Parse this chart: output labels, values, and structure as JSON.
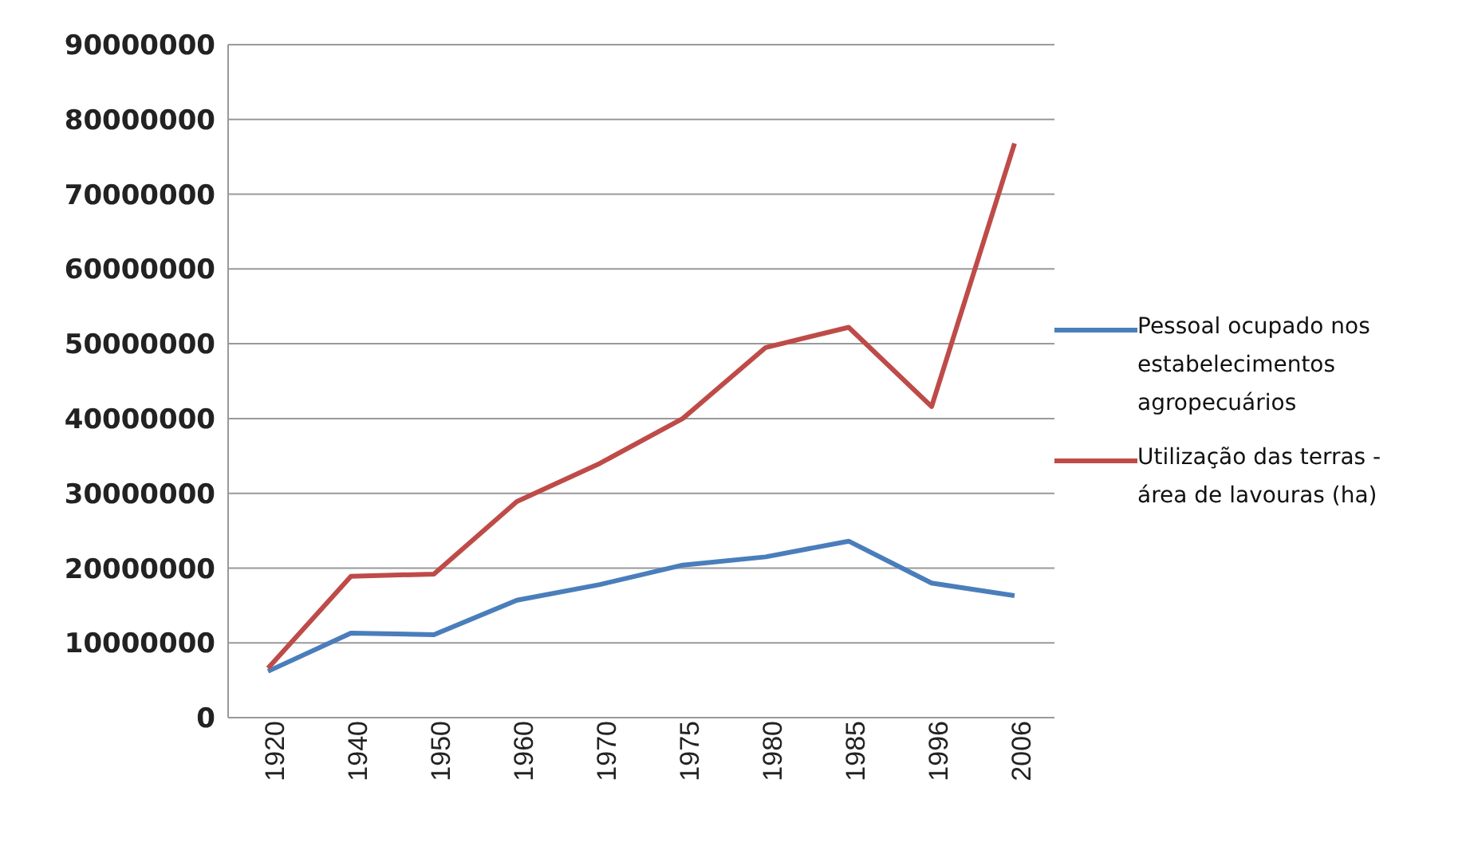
{
  "chart_data": {
    "type": "line",
    "categories": [
      "1920",
      "1940",
      "1950",
      "1960",
      "1970",
      "1975",
      "1980",
      "1985",
      "1996",
      "2006"
    ],
    "series": [
      {
        "name": "Pessoal ocupado nos estabelecimentos agropecuários",
        "color": "#4a7ebb",
        "values": [
          6200000,
          11300000,
          11100000,
          15700000,
          17800000,
          20400000,
          21500000,
          23600000,
          18000000,
          16300000
        ]
      },
      {
        "name": "Utilização das terras - área de lavouras (ha)",
        "color": "#be4b48",
        "values": [
          6600000,
          18900000,
          19200000,
          28900000,
          34000000,
          40000000,
          49500000,
          52200000,
          41600000,
          76800000
        ]
      }
    ],
    "ylim": [
      0,
      90000000
    ],
    "yticks": [
      0,
      10000000,
      20000000,
      30000000,
      40000000,
      50000000,
      60000000,
      70000000,
      80000000,
      90000000
    ],
    "grid": "y",
    "legend": "right",
    "marker": "none",
    "line_style": "solid"
  }
}
